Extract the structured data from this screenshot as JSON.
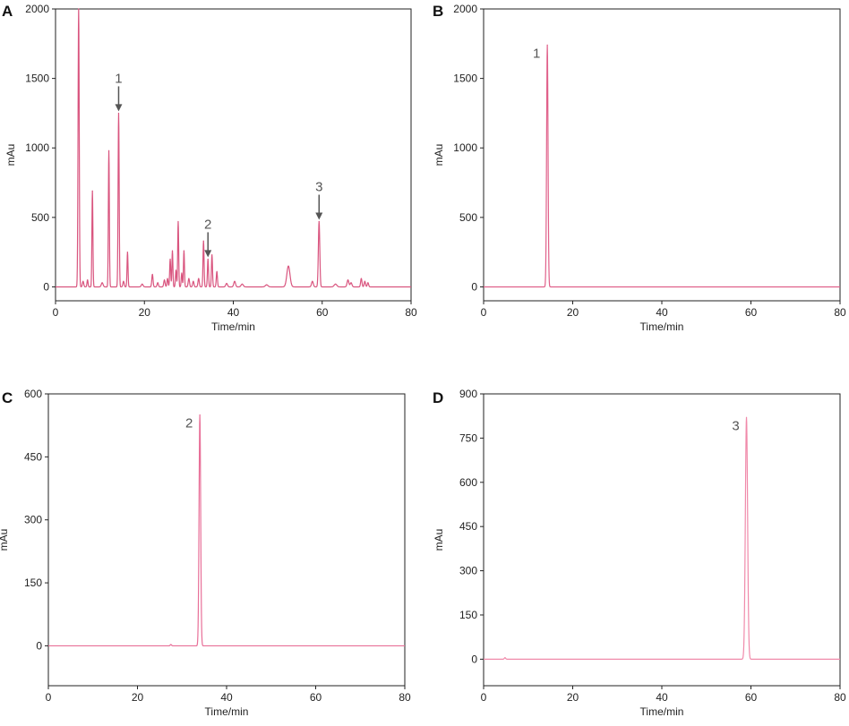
{
  "chart_data": [
    {
      "panel_label": "A",
      "type": "line",
      "xlabel": "Time/min",
      "ylabel": "mAu",
      "xlim": [
        0,
        80
      ],
      "ylim": [
        -100,
        2000
      ],
      "xticks": [
        0,
        20,
        40,
        60,
        80
      ],
      "yticks": [
        0,
        500,
        1000,
        1500,
        2000
      ],
      "x_tick_labels": [
        "0",
        "20",
        "40",
        "60",
        "80"
      ],
      "y_tick_labels": [
        "0",
        "500",
        "1000",
        "1500",
        "2000"
      ],
      "grid": false,
      "line_color": "#d9557f",
      "peaks": [
        {
          "x": 5.2,
          "y": 2000,
          "w": 0.13
        },
        {
          "x": 6.2,
          "y": 40,
          "w": 0.15
        },
        {
          "x": 7.2,
          "y": 50,
          "w": 0.12
        },
        {
          "x": 8.3,
          "y": 690,
          "w": 0.11
        },
        {
          "x": 10.5,
          "y": 30,
          "w": 0.2
        },
        {
          "x": 12.0,
          "y": 980,
          "w": 0.11
        },
        {
          "x": 14.2,
          "y": 1250,
          "w": 0.12
        },
        {
          "x": 15.3,
          "y": 40,
          "w": 0.15
        },
        {
          "x": 16.2,
          "y": 250,
          "w": 0.11
        },
        {
          "x": 19.5,
          "y": 20,
          "w": 0.2
        },
        {
          "x": 21.8,
          "y": 90,
          "w": 0.14
        },
        {
          "x": 23.0,
          "y": 30,
          "w": 0.15
        },
        {
          "x": 24.5,
          "y": 50,
          "w": 0.15
        },
        {
          "x": 25.2,
          "y": 60,
          "w": 0.13
        },
        {
          "x": 25.8,
          "y": 200,
          "w": 0.12
        },
        {
          "x": 26.3,
          "y": 260,
          "w": 0.11
        },
        {
          "x": 27.1,
          "y": 120,
          "w": 0.12
        },
        {
          "x": 27.6,
          "y": 470,
          "w": 0.11
        },
        {
          "x": 28.4,
          "y": 100,
          "w": 0.12
        },
        {
          "x": 28.9,
          "y": 260,
          "w": 0.11
        },
        {
          "x": 30.0,
          "y": 60,
          "w": 0.15
        },
        {
          "x": 31.0,
          "y": 40,
          "w": 0.15
        },
        {
          "x": 32.2,
          "y": 60,
          "w": 0.15
        },
        {
          "x": 33.3,
          "y": 330,
          "w": 0.12
        },
        {
          "x": 34.3,
          "y": 200,
          "w": 0.12
        },
        {
          "x": 35.2,
          "y": 230,
          "w": 0.12
        },
        {
          "x": 36.3,
          "y": 110,
          "w": 0.13
        },
        {
          "x": 38.5,
          "y": 25,
          "w": 0.2
        },
        {
          "x": 40.3,
          "y": 40,
          "w": 0.2
        },
        {
          "x": 42.0,
          "y": 20,
          "w": 0.25
        },
        {
          "x": 47.5,
          "y": 15,
          "w": 0.3
        },
        {
          "x": 52.4,
          "y": 150,
          "w": 0.35
        },
        {
          "x": 57.8,
          "y": 40,
          "w": 0.2
        },
        {
          "x": 59.3,
          "y": 470,
          "w": 0.16
        },
        {
          "x": 63.0,
          "y": 20,
          "w": 0.3
        },
        {
          "x": 65.8,
          "y": 50,
          "w": 0.2
        },
        {
          "x": 66.5,
          "y": 30,
          "w": 0.2
        },
        {
          "x": 68.8,
          "y": 60,
          "w": 0.15
        },
        {
          "x": 69.6,
          "y": 40,
          "w": 0.15
        },
        {
          "x": 70.3,
          "y": 30,
          "w": 0.15
        }
      ],
      "annotations": [
        {
          "text": "1",
          "x": 14.2,
          "y": 1250,
          "arrow": true
        },
        {
          "text": "2",
          "x": 34.3,
          "y": 200,
          "arrow": true
        },
        {
          "text": "3",
          "x": 59.3,
          "y": 470,
          "arrow": true
        }
      ]
    },
    {
      "panel_label": "B",
      "type": "line",
      "xlabel": "Time/min",
      "ylabel": "mAu",
      "xlim": [
        0,
        80
      ],
      "ylim": [
        -100,
        2000
      ],
      "xticks": [
        0,
        20,
        40,
        60,
        80
      ],
      "yticks": [
        0,
        500,
        1000,
        1500,
        2000
      ],
      "x_tick_labels": [
        "0",
        "20",
        "40",
        "60",
        "80"
      ],
      "y_tick_labels": [
        "0",
        "500",
        "1000",
        "1500",
        "2000"
      ],
      "grid": false,
      "line_color": "#e0608a",
      "peaks": [
        {
          "x": 14.3,
          "y": 1740,
          "w": 0.16
        }
      ],
      "annotations": [
        {
          "text": "1",
          "x": 14.3,
          "y": 1740,
          "arrow": false
        }
      ]
    },
    {
      "panel_label": "C",
      "type": "line",
      "xlabel": "Time/min",
      "ylabel": "mAu",
      "xlim": [
        0,
        80
      ],
      "ylim": [
        -95,
        600
      ],
      "xticks": [
        0,
        20,
        40,
        60,
        80
      ],
      "yticks": [
        0,
        150,
        300,
        450,
        600
      ],
      "x_tick_labels": [
        "0",
        "20",
        "40",
        "60",
        "80"
      ],
      "y_tick_labels": [
        "0",
        "150",
        "300",
        "450",
        "600"
      ],
      "grid": false,
      "line_color": "#e86f98",
      "peaks": [
        {
          "x": 27.5,
          "y": 3,
          "w": 0.15
        },
        {
          "x": 34.0,
          "y": 550,
          "w": 0.18
        }
      ],
      "annotations": [
        {
          "text": "2",
          "x": 34.0,
          "y": 550,
          "arrow": false
        }
      ]
    },
    {
      "panel_label": "D",
      "type": "line",
      "xlabel": "Time/min",
      "ylabel": "mAu",
      "xlim": [
        0,
        80
      ],
      "ylim": [
        -90,
        900
      ],
      "xticks": [
        0,
        20,
        40,
        60,
        80
      ],
      "yticks": [
        0,
        150,
        300,
        450,
        600,
        750,
        900
      ],
      "x_tick_labels": [
        "0",
        "20",
        "40",
        "60",
        "80"
      ],
      "y_tick_labels": [
        "0",
        "150",
        "300",
        "450",
        "600",
        "750",
        "900"
      ],
      "grid": false,
      "line_color": "#f08aaa",
      "peaks": [
        {
          "x": 4.8,
          "y": 5,
          "w": 0.15
        },
        {
          "x": 59.0,
          "y": 820,
          "w": 0.25
        }
      ],
      "annotations": [
        {
          "text": "3",
          "x": 59.0,
          "y": 820,
          "arrow": false
        }
      ]
    }
  ]
}
